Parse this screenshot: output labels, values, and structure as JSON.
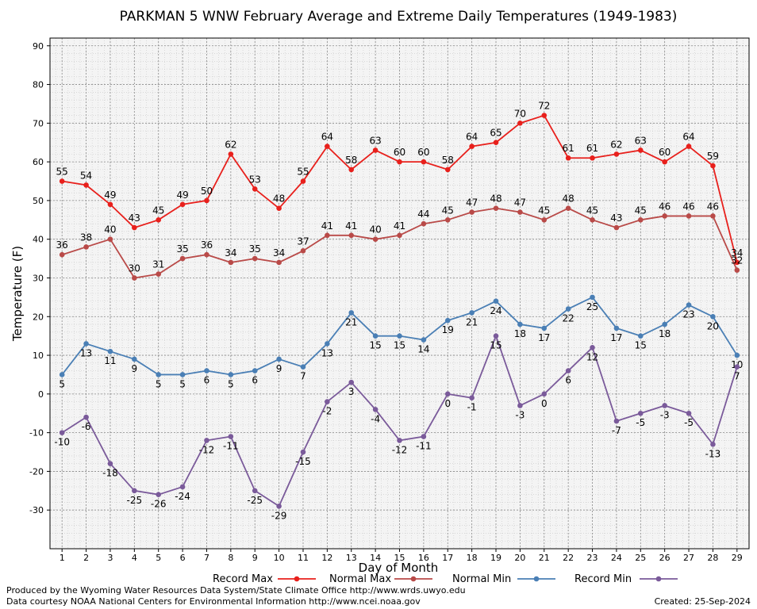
{
  "chart_data": {
    "type": "line",
    "title": "PARKMAN 5 WNW February Average and Extreme Daily Temperatures (1949-1983)",
    "xlabel": "Day of Month",
    "ylabel": "Temperature (F)",
    "x": [
      1,
      2,
      3,
      4,
      5,
      6,
      7,
      8,
      9,
      10,
      11,
      12,
      13,
      14,
      15,
      16,
      17,
      18,
      19,
      20,
      21,
      22,
      23,
      24,
      25,
      26,
      27,
      28,
      29
    ],
    "ylim": [
      -40,
      92
    ],
    "yticks": [
      -30,
      -20,
      -10,
      0,
      10,
      20,
      30,
      40,
      50,
      60,
      70,
      80,
      90
    ],
    "grid": true,
    "legend_placement": "bottom",
    "series": [
      {
        "name": "Record Max",
        "color": "#e8201c",
        "label_pos": "above",
        "values": [
          55,
          54,
          49,
          43,
          45,
          49,
          50,
          62,
          53,
          48,
          55,
          64,
          58,
          63,
          60,
          60,
          58,
          64,
          65,
          70,
          72,
          61,
          61,
          62,
          63,
          60,
          64,
          59,
          34
        ]
      },
      {
        "name": "Normal Max",
        "color": "#b94a48",
        "label_pos": "above",
        "values": [
          36,
          38,
          40,
          30,
          31,
          35,
          36,
          34,
          35,
          34,
          37,
          41,
          41,
          40,
          41,
          44,
          45,
          47,
          48,
          47,
          45,
          48,
          45,
          43,
          45,
          46,
          46,
          46,
          32
        ]
      },
      {
        "name": "Normal Min",
        "color": "#4a7fb5",
        "label_pos": "below",
        "values": [
          5,
          13,
          11,
          9,
          5,
          5,
          6,
          5,
          6,
          9,
          7,
          13,
          21,
          15,
          15,
          14,
          19,
          21,
          24,
          18,
          17,
          22,
          25,
          17,
          15,
          18,
          23,
          20,
          10
        ]
      },
      {
        "name": "Record Min",
        "color": "#7a5a9a",
        "label_pos": "below",
        "values": [
          -10,
          -6,
          -18,
          -25,
          -26,
          -24,
          -12,
          -11,
          -25,
          -29,
          -15,
          -2,
          3,
          -4,
          -12,
          -11,
          0,
          -1,
          15,
          -3,
          0,
          6,
          12,
          -7,
          -5,
          -3,
          -5,
          -13,
          7
        ]
      }
    ]
  },
  "footer": {
    "produced_by": "Produced by the Wyoming Water Resources Data System/State Climate Office http://www.wrds.uwyo.edu",
    "data_courtesy": "Data courtesy NOAA National Centers for Environmental Information http://www.ncei.noaa.gov",
    "created": "Created:  25-Sep-2024"
  }
}
